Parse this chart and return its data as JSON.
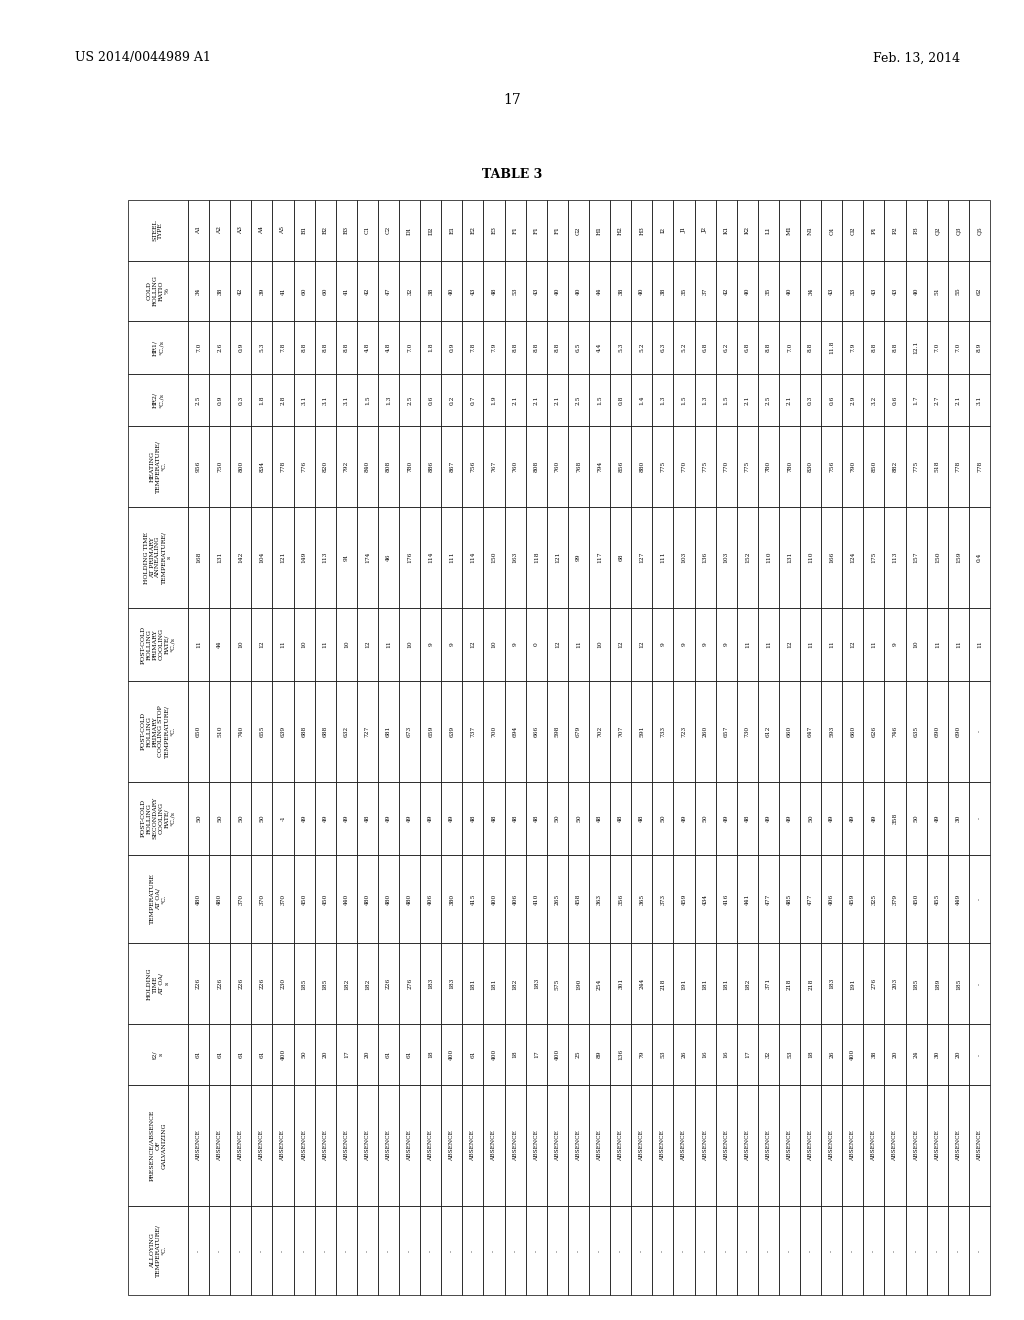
{
  "header_left": "US 2014/0044989 A1",
  "header_right": "Feb. 13, 2014",
  "page_number": "17",
  "table_title": "TABLE 3",
  "columns": [
    "STEEL\nTYPE",
    "COLD\nROLLING\nRATIO\n%",
    "HR1/\n°C./s",
    "HR2/\n°C./s",
    "HEATING\nTEMPERATURE/\n°C.",
    "HOLDING TIME\nAT PRIMARY\nANNEALING\nTEMPERATURE/\ns",
    "POST-COLD\nROLLING\nPRIMARY\nCOOLING\nRATE/\n°C./s",
    "POST-COLD\nROLLING\nPRIMARY\nCOOLING STOP\nTEMPERATURE/\n°C.",
    "POST-COLD\nROLLING\nSECONDARY\nCOOLING\nRATE/\n°C./s",
    "TEMPERATURE\nAT OA/\n°C.",
    "HOLDING\nTIME\nAT OA/\ns",
    "t2/\ns",
    "PRESENCE/ABSENCE\nOF\nGALVANIZING",
    "ALLOYING\nTEMPERATURE/\n°C."
  ],
  "rows": [
    [
      "A1",
      "34",
      "7.0",
      "2.5",
      "956",
      "168",
      "11",
      "650",
      "50",
      "480",
      "226",
      "61",
      "ABSENCE",
      "-"
    ],
    [
      "A2",
      "38",
      "2.6",
      "0.9",
      "750",
      "131",
      "44",
      "510",
      "50",
      "480",
      "226",
      "61",
      "ABSENCE",
      "-"
    ],
    [
      "A3",
      "42",
      "0.9",
      "0.3",
      "800",
      "142",
      "10",
      "740",
      "50",
      "370",
      "226",
      "61",
      "ABSENCE",
      "-"
    ],
    [
      "A4",
      "39",
      "5.3",
      "1.8",
      "834",
      "104",
      "12",
      "655",
      "50",
      "370",
      "226",
      "61",
      "ABSENCE",
      "-"
    ],
    [
      "A5",
      "41",
      "7.8",
      "2.8",
      "778",
      "121",
      "11",
      "639",
      "-1",
      "370",
      "230",
      "400",
      "ABSENCE",
      "-"
    ],
    [
      "B1",
      "60",
      "8.8",
      "3.1",
      "776",
      "149",
      "10",
      "688",
      "49",
      "450",
      "185",
      "50",
      "ABSENCE",
      "-"
    ],
    [
      "B2",
      "60",
      "8.8",
      "3.1",
      "820",
      "113",
      "11",
      "688",
      "49",
      "450",
      "185",
      "20",
      "ABSENCE",
      "-"
    ],
    [
      "B3",
      "41",
      "8.8",
      "3.1",
      "792",
      "91",
      "10",
      "632",
      "49",
      "440",
      "182",
      "17",
      "ABSENCE",
      "-"
    ],
    [
      "C1",
      "42",
      "4.8",
      "1.5",
      "840",
      "174",
      "12",
      "727",
      "48",
      "480",
      "182",
      "20",
      "ABSENCE",
      "-"
    ],
    [
      "C2",
      "47",
      "4.8",
      "1.3",
      "808",
      "46",
      "11",
      "681",
      "49",
      "480",
      "226",
      "61",
      "ABSENCE",
      "-"
    ],
    [
      "D1",
      "32",
      "7.0",
      "2.5",
      "780",
      "176",
      "10",
      "673",
      "49",
      "480",
      "276",
      "61",
      "ABSENCE",
      "-"
    ],
    [
      "D2",
      "38",
      "1.8",
      "0.6",
      "886",
      "114",
      "9",
      "659",
      "49",
      "406",
      "183",
      "18",
      "ABSENCE",
      "-"
    ],
    [
      "E1",
      "40",
      "0.9",
      "0.2",
      "867",
      "111",
      "9",
      "639",
      "49",
      "380",
      "183",
      "400",
      "ABSENCE",
      "-"
    ],
    [
      "E2",
      "43",
      "7.8",
      "0.7",
      "756",
      "114",
      "12",
      "737",
      "48",
      "415",
      "181",
      "61",
      "ABSENCE",
      "-"
    ],
    [
      "E3",
      "48",
      "7.9",
      "1.9",
      "767",
      "150",
      "10",
      "700",
      "48",
      "400",
      "181",
      "400",
      "ABSENCE",
      "-"
    ],
    [
      "F1",
      "53",
      "8.8",
      "2.1",
      "760",
      "163",
      "9",
      "694",
      "48",
      "406",
      "182",
      "18",
      "ABSENCE",
      "-"
    ],
    [
      "F1",
      "43",
      "8.8",
      "2.1",
      "808",
      "118",
      "0",
      "666",
      "48",
      "410",
      "183",
      "17",
      "ABSENCE",
      "-"
    ],
    [
      "F1",
      "40",
      "8.8",
      "2.1",
      "760",
      "121",
      "12",
      "598",
      "50",
      "265",
      "575",
      "400",
      "ABSENCE",
      "-"
    ],
    [
      "G2",
      "40",
      "6.5",
      "2.5",
      "768",
      "99",
      "11",
      "679",
      "50",
      "458",
      "190",
      "25",
      "ABSENCE",
      "-"
    ],
    [
      "H1",
      "44",
      "4.4",
      "1.5",
      "794",
      "117",
      "10",
      "702",
      "48",
      "363",
      "254",
      "89",
      "ABSENCE",
      "-"
    ],
    [
      "H2",
      "38",
      "5.3",
      "0.8",
      "856",
      "68",
      "12",
      "707",
      "48",
      "356",
      "301",
      "136",
      "ABSENCE",
      "-"
    ],
    [
      "H3",
      "40",
      "5.2",
      "1.4",
      "880",
      "127",
      "12",
      "591",
      "48",
      "365",
      "244",
      "79",
      "ABSENCE",
      "-"
    ],
    [
      "I2",
      "38",
      "6.3",
      "1.3",
      "775",
      "111",
      "9",
      "733",
      "50",
      "373",
      "218",
      "53",
      "ABSENCE",
      "-"
    ],
    [
      "J1",
      "35",
      "5.2",
      "1.5",
      "770",
      "103",
      "9",
      "723",
      "49",
      "459",
      "191",
      "26",
      "ABSENCE",
      "-"
    ],
    [
      "J2",
      "37",
      "6.8",
      "1.3",
      "775",
      "136",
      "9",
      "260",
      "50",
      "434",
      "181",
      "16",
      "ABSENCE",
      "-"
    ],
    [
      "K1",
      "42",
      "6.2",
      "1.5",
      "770",
      "103",
      "9",
      "657",
      "49",
      "416",
      "181",
      "16",
      "ABSENCE",
      "-"
    ],
    [
      "K2",
      "40",
      "6.8",
      "2.1",
      "775",
      "152",
      "11",
      "730",
      "48",
      "441",
      "182",
      "17",
      "ABSENCE",
      "-"
    ],
    [
      "L1",
      "35",
      "8.8",
      "2.5",
      "780",
      "110",
      "11",
      "612",
      "49",
      "477",
      "371",
      "32",
      "ABSENCE",
      "-"
    ],
    [
      "M1",
      "40",
      "7.0",
      "2.1",
      "780",
      "131",
      "12",
      "660",
      "49",
      "485",
      "218",
      "53",
      "ABSENCE",
      "-"
    ],
    [
      "N1",
      "34",
      "8.8",
      "0.3",
      "830",
      "110",
      "11",
      "647",
      "50",
      "477",
      "218",
      "18",
      "ABSENCE",
      "-"
    ],
    [
      "O1",
      "43",
      "11.8",
      "0.6",
      "756",
      "166",
      "11",
      "593",
      "49",
      "406",
      "183",
      "26",
      "ABSENCE",
      "-"
    ],
    [
      "O2",
      "33",
      "7.9",
      "2.9",
      "790",
      "124",
      "12",
      "660",
      "49",
      "459",
      "191",
      "400",
      "ABSENCE",
      "-"
    ],
    [
      "P1",
      "43",
      "8.8",
      "3.2",
      "850",
      "175",
      "11",
      "626",
      "49",
      "325",
      "276",
      "38",
      "ABSENCE",
      "-"
    ],
    [
      "P2",
      "43",
      "8.8",
      "0.6",
      "882",
      "113",
      "9",
      "746",
      "358",
      "379",
      "203",
      "20",
      "ABSENCE",
      "-"
    ],
    [
      "P3",
      "40",
      "12.1",
      "1.7",
      "775",
      "157",
      "10",
      "635",
      "50",
      "450",
      "185",
      "24",
      "ABSENCE",
      "-"
    ],
    [
      "Q2",
      "51",
      "7.0",
      "2.7",
      "518",
      "150",
      "11",
      "690",
      "49",
      "455",
      "189",
      "30",
      "ABSENCE",
      "-"
    ],
    [
      "Q3",
      "55",
      "7.0",
      "2.1",
      "778",
      "159",
      "11",
      "690",
      "30",
      "449",
      "185",
      "20",
      "ABSENCE",
      "-"
    ],
    [
      "Q5",
      "62",
      "8.9",
      "3.1",
      "778",
      "0.4",
      "11",
      "-",
      "-",
      "-",
      "-",
      "-",
      "ABSENCE",
      "-"
    ]
  ],
  "col_widths_rel": [
    1.5,
    1.5,
    1.3,
    1.3,
    2.0,
    2.5,
    1.8,
    2.5,
    1.8,
    2.2,
    2.0,
    1.5,
    3.0,
    2.2
  ]
}
